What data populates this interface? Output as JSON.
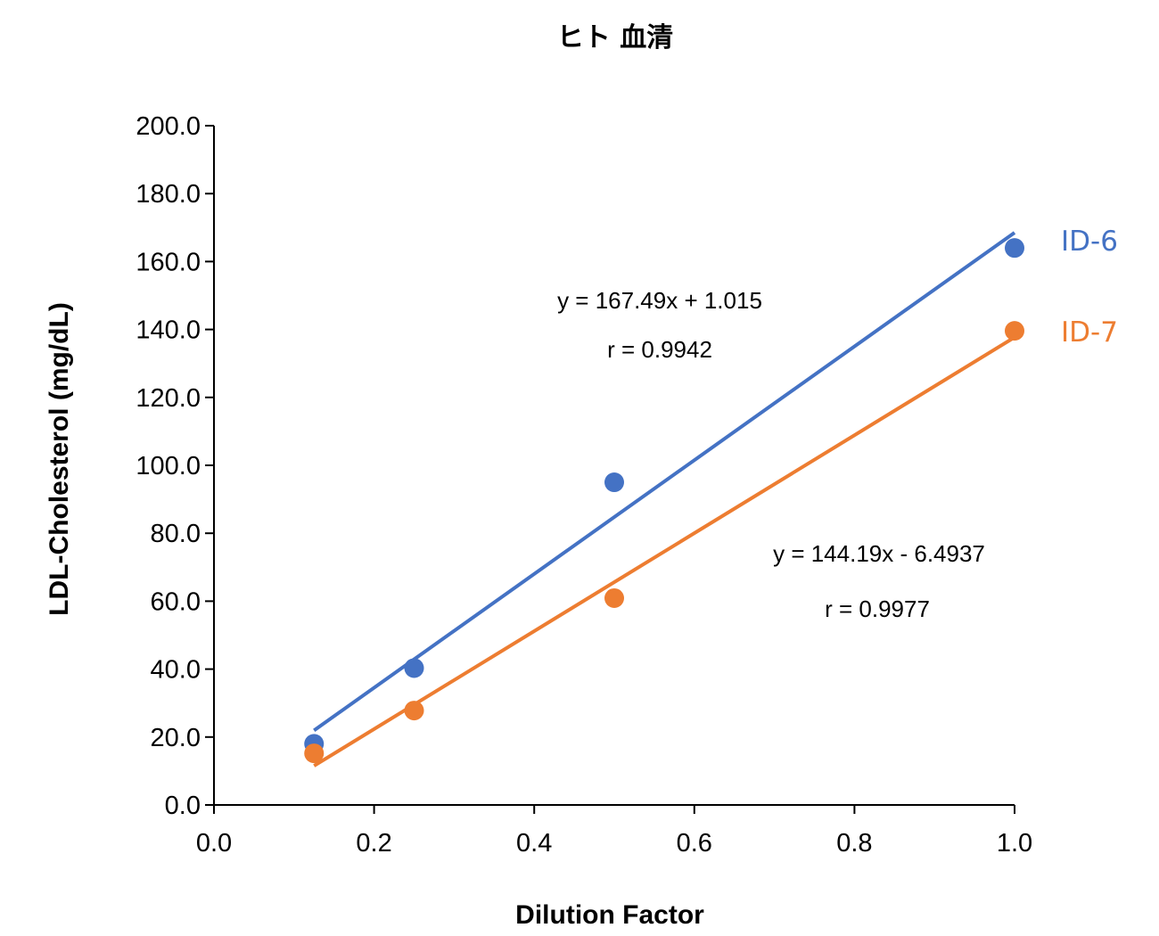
{
  "chart_data": {
    "type": "scatter",
    "title": "ヒト 血清",
    "xlabel": "Dilution Factor",
    "ylabel": "LDL-Cholesterol (mg/dL)",
    "xlim": [
      0.0,
      1.0
    ],
    "ylim": [
      0.0,
      200.0
    ],
    "x_ticks": [
      0.0,
      0.2,
      0.4,
      0.6,
      0.8,
      1.0
    ],
    "y_ticks": [
      0.0,
      20.0,
      40.0,
      60.0,
      80.0,
      100.0,
      120.0,
      140.0,
      160.0,
      180.0,
      200.0
    ],
    "x_tick_labels": [
      "0.0",
      "0.2",
      "0.4",
      "0.6",
      "0.8",
      "1.0"
    ],
    "y_tick_labels": [
      "0.0",
      "20.0",
      "40.0",
      "60.0",
      "80.0",
      "100.0",
      "120.0",
      "140.0",
      "160.0",
      "180.0",
      "200.0"
    ],
    "grid": false,
    "series": [
      {
        "name": "ID-6",
        "color": "#4472C4",
        "x": [
          0.125,
          0.25,
          0.5,
          1.0
        ],
        "y": [
          18.0,
          40.3,
          95.0,
          164.0
        ],
        "trendline": {
          "slope": 167.49,
          "intercept": 1.015,
          "x_range": [
            0.125,
            1.0
          ]
        },
        "equation": "y = 167.49x + 1.015",
        "r_label": "r = 0.9942"
      },
      {
        "name": "ID-7",
        "color": "#ED7D31",
        "x": [
          0.125,
          0.25,
          0.5,
          1.0
        ],
        "y": [
          15.2,
          27.8,
          60.9,
          139.6
        ],
        "trendline": {
          "slope": 144.19,
          "intercept": -6.4937,
          "x_range": [
            0.125,
            1.0
          ]
        },
        "equation": "y = 144.19x - 6.4937",
        "r_label": "r = 0.9977"
      }
    ]
  }
}
